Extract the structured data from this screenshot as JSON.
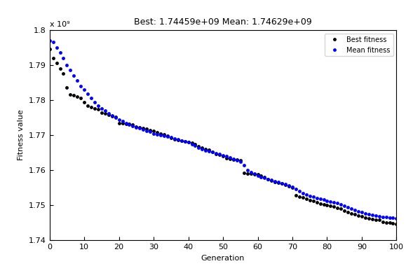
{
  "chart_data": {
    "type": "scatter",
    "title": "Best: 1.74459e+09 Mean: 1.74629e+09",
    "x_label": "Generation",
    "y_label": "Fitness value",
    "annotations": [
      "x 10⁹"
    ],
    "x": [
      0,
      1,
      2,
      3,
      4,
      5,
      6,
      7,
      8,
      9,
      10,
      11,
      12,
      13,
      14,
      15,
      16,
      17,
      18,
      19,
      20,
      21,
      22,
      23,
      24,
      25,
      26,
      27,
      28,
      29,
      30,
      31,
      32,
      33,
      34,
      35,
      36,
      37,
      38,
      39,
      40,
      41,
      42,
      43,
      44,
      45,
      46,
      47,
      48,
      49,
      50,
      51,
      52,
      53,
      54,
      55,
      56,
      57,
      58,
      59,
      60,
      61,
      62,
      63,
      64,
      65,
      66,
      67,
      68,
      69,
      70,
      71,
      72,
      73,
      74,
      75,
      76,
      77,
      78,
      79,
      80,
      81,
      82,
      83,
      84,
      85,
      86,
      87,
      88,
      89,
      90,
      91,
      92,
      93,
      94,
      95,
      96,
      97,
      98,
      99,
      100
    ],
    "series": [
      {
        "name": "Best fitness",
        "color": "#000000",
        "marker": "point",
        "line_style": "none",
        "values": [
          1.7945,
          1.792,
          1.7905,
          1.789,
          1.7875,
          1.7835,
          1.7815,
          1.7813,
          1.781,
          1.7805,
          1.7795,
          1.7785,
          1.778,
          1.7777,
          1.7774,
          1.7765,
          1.7762,
          1.7758,
          1.7755,
          1.7753,
          1.7735,
          1.7734,
          1.7733,
          1.7732,
          1.7731,
          1.7725,
          1.7722,
          1.772,
          1.7718,
          1.7715,
          1.7712,
          1.7708,
          1.7705,
          1.7702,
          1.7698,
          1.7692,
          1.7688,
          1.7686,
          1.7684,
          1.7683,
          1.7681,
          1.7679,
          1.7675,
          1.7668,
          1.7664,
          1.7661,
          1.7658,
          1.7652,
          1.7647,
          1.7644,
          1.764,
          1.7635,
          1.7633,
          1.7631,
          1.763,
          1.7628,
          1.7592,
          1.7591,
          1.759,
          1.7589,
          1.7588,
          1.7585,
          1.758,
          1.7575,
          1.757,
          1.7567,
          1.7565,
          1.7562,
          1.7558,
          1.7555,
          1.755,
          1.7528,
          1.7525,
          1.7522,
          1.7518,
          1.7515,
          1.7512,
          1.7508,
          1.7505,
          1.7502,
          1.75,
          1.7498,
          1.7496,
          1.7493,
          1.749,
          1.7485,
          1.7481,
          1.7477,
          1.7474,
          1.747,
          1.7468,
          1.7465,
          1.7462,
          1.746,
          1.7459,
          1.7458,
          1.7452,
          1.7451,
          1.745,
          1.7449,
          1.7446
        ]
      },
      {
        "name": "Mean fitness",
        "color": "#0000ff",
        "marker": "point",
        "line_style": "none",
        "values": [
          1.797,
          1.7965,
          1.795,
          1.7935,
          1.792,
          1.79,
          1.7885,
          1.787,
          1.7855,
          1.784,
          1.783,
          1.7818,
          1.7806,
          1.7795,
          1.7785,
          1.7777,
          1.777,
          1.7763,
          1.7757,
          1.775,
          1.7745,
          1.774,
          1.7735,
          1.7731,
          1.7727,
          1.7723,
          1.772,
          1.7717,
          1.7713,
          1.771,
          1.7705,
          1.7703,
          1.7701,
          1.7699,
          1.7697,
          1.7694,
          1.7691,
          1.7688,
          1.7685,
          1.7683,
          1.768,
          1.7675,
          1.767,
          1.7665,
          1.766,
          1.7657,
          1.7654,
          1.7652,
          1.7649,
          1.7646,
          1.7643,
          1.764,
          1.7636,
          1.7632,
          1.7628,
          1.7625,
          1.7615,
          1.76,
          1.7595,
          1.759,
          1.7585,
          1.758,
          1.7578,
          1.7575,
          1.7572,
          1.7569,
          1.7566,
          1.7563,
          1.756,
          1.7556,
          1.7553,
          1.7547,
          1.754,
          1.7535,
          1.753,
          1.7527,
          1.7524,
          1.7521,
          1.7518,
          1.7516,
          1.7513,
          1.7511,
          1.7509,
          1.7506,
          1.7503,
          1.7499,
          1.7495,
          1.7491,
          1.7487,
          1.7483,
          1.748,
          1.7477,
          1.7475,
          1.7473,
          1.7471,
          1.7469,
          1.7467,
          1.7466,
          1.7465,
          1.7464,
          1.7463
        ]
      }
    ],
    "xlim": [
      0,
      100
    ],
    "xticks": [
      0,
      10,
      20,
      30,
      40,
      50,
      60,
      70,
      80,
      90,
      100
    ],
    "ylim": [
      1.74,
      1.8
    ],
    "yticks": [
      1.74,
      1.75,
      1.76,
      1.77,
      1.78,
      1.79,
      1.8
    ],
    "grid": false,
    "legend": "upper right"
  }
}
